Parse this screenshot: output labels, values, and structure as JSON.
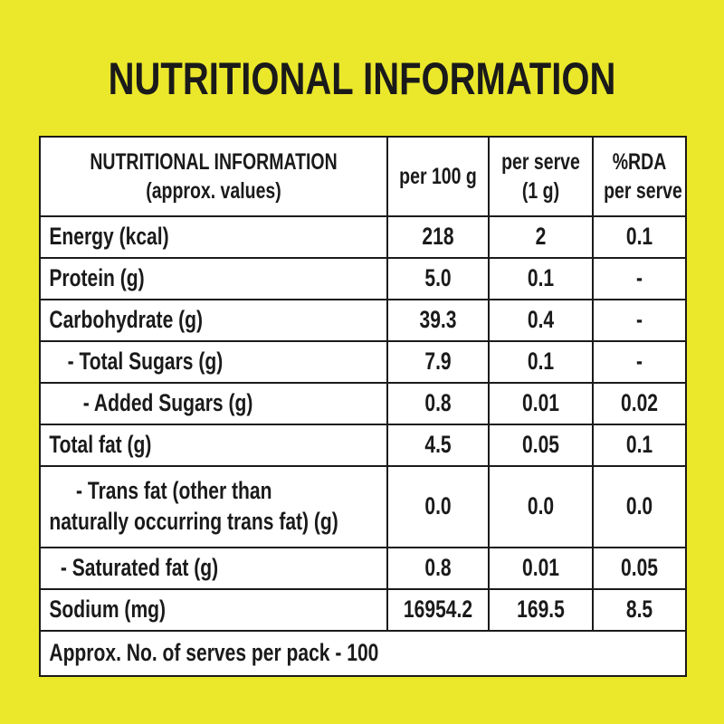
{
  "title": "NUTRITIONAL INFORMATION",
  "header": {
    "col1_line1": "NUTRITIONAL INFORMATION",
    "col1_line2": "(approx. values)",
    "col2": "per 100 g",
    "col3_line1": "per serve",
    "col3_line2": "(1 g)",
    "col4_line1": "%RDA",
    "col4_line2": "per serve"
  },
  "rows": [
    {
      "name": "Energy (kcal)",
      "per100": "218",
      "perServe": "2",
      "rda": "0.1"
    },
    {
      "name": "Protein (g)",
      "per100": "5.0",
      "perServe": "0.1",
      "rda": "-"
    },
    {
      "name": "Carbohydrate (g)",
      "per100": "39.3",
      "perServe": "0.4",
      "rda": "-"
    },
    {
      "name": "- Total Sugars (g)",
      "per100": "7.9",
      "perServe": "0.1",
      "rda": "-"
    },
    {
      "name": "- Added Sugars (g)",
      "per100": "0.8",
      "perServe": "0.01",
      "rda": "0.02"
    },
    {
      "name": "Total fat (g)",
      "per100": "4.5",
      "perServe": "0.05",
      "rda": "0.1"
    },
    {
      "name_line1": "- Trans fat (other than",
      "name_line2": "naturally occurring trans fat) (g)",
      "per100": "0.0",
      "perServe": "0.0",
      "rda": "0.0"
    },
    {
      "name": "- Saturated fat (g)",
      "per100": "0.8",
      "perServe": "0.01",
      "rda": "0.05"
    },
    {
      "name": "Sodium (mg)",
      "per100": "16954.2",
      "perServe": "169.5",
      "rda": "8.5"
    }
  ],
  "footer": "Approx. No. of serves per pack - 100"
}
